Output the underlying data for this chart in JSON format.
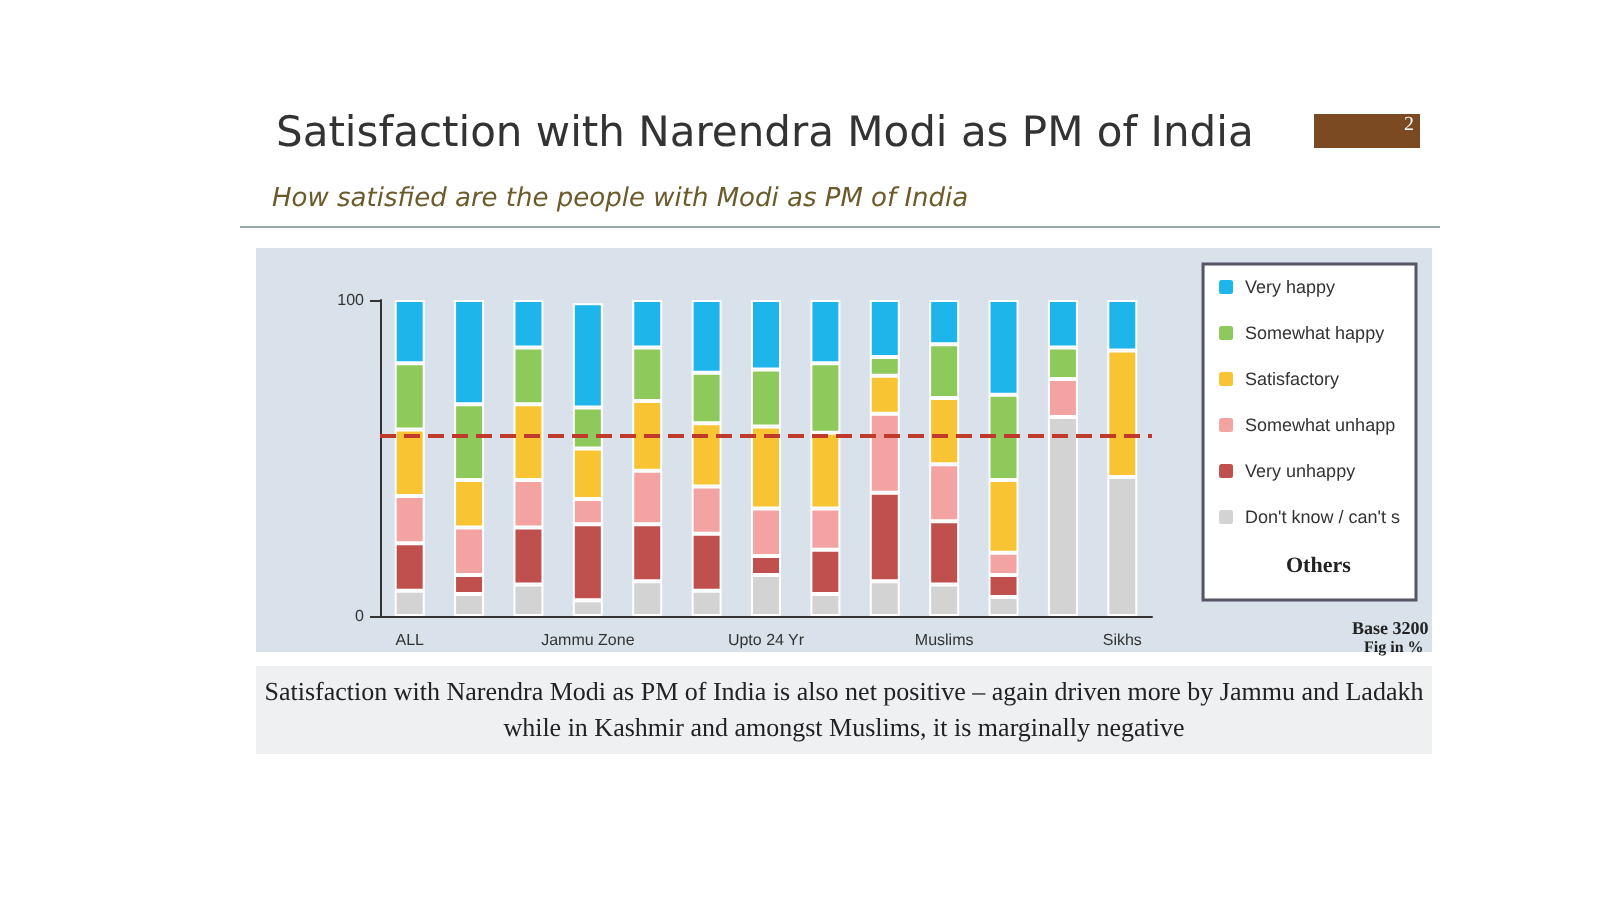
{
  "chart_data": {
    "type": "bar",
    "stacked": true,
    "title": "Satisfaction with Narendra Modi as PM of India",
    "subtitle": "How satisfied are the people with Modi as PM of India",
    "categories": [
      "ALL",
      null,
      null,
      "Jammu Zone",
      null,
      null,
      "Upto 24 Yr",
      null,
      null,
      "Muslims",
      null,
      null,
      "Sikhs"
    ],
    "series": [
      {
        "name": "Don't know / can't s",
        "color": "#d3d3d3",
        "values": [
          8,
          7,
          10,
          5,
          11,
          8,
          13,
          7,
          11,
          10,
          6,
          63,
          44
        ]
      },
      {
        "name": "Very unhappy",
        "color": "#c0504d",
        "values": [
          15,
          6,
          18,
          24,
          18,
          18,
          6,
          14,
          28,
          20,
          7,
          null,
          null
        ]
      },
      {
        "name": "Somewhat unhapp",
        "color": "#f4a3a3",
        "values": [
          15,
          15,
          15,
          8,
          17,
          15,
          15,
          13,
          25,
          18,
          7,
          12,
          null
        ]
      },
      {
        "name": "Satisfactory",
        "color": "#f9c433",
        "values": [
          21,
          15,
          24,
          16,
          22,
          20,
          26,
          24,
          12,
          21,
          23,
          null,
          40
        ]
      },
      {
        "name": "Somewhat happy",
        "color": "#8dc95b",
        "values": [
          21,
          24,
          18,
          13,
          17,
          16,
          18,
          22,
          6,
          17,
          27,
          10,
          null
        ]
      },
      {
        "name": "Very happy",
        "color": "#1db5ea",
        "values": [
          20,
          33,
          15,
          33,
          15,
          23,
          22,
          20,
          18,
          14,
          30,
          15,
          16
        ]
      }
    ],
    "ylim": [
      0,
      100
    ],
    "yticks": [
      0,
      100
    ],
    "grid": false,
    "legend": "right",
    "ref_lines": [
      {
        "axis": "y",
        "value": 57,
        "color": "#c0392b",
        "line_style": "dashed"
      }
    ],
    "annotations": [
      "Others",
      "Base 3200",
      "Fig in %",
      "Satisfaction with Narendra Modi as PM of India is also net positive – again driven more by Jammu and Ladakh while in Kashmir and amongst Muslims, it is marginally negative",
      "2"
    ]
  }
}
